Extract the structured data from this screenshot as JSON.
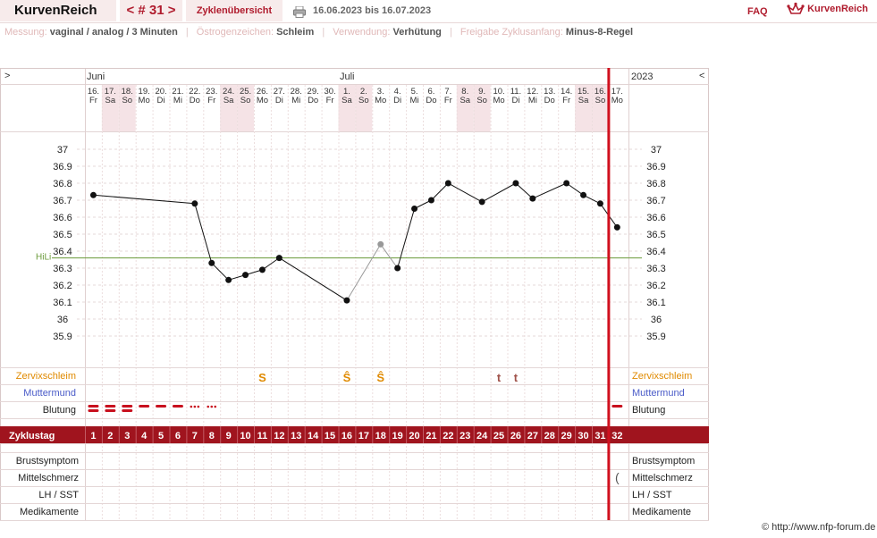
{
  "header": {
    "logo": "KurvenReich",
    "nav": "< # 31 >",
    "cycle_overview": "Zyklenübersicht",
    "date_range": "16.06.2023 bis 16.07.2023",
    "faq": "FAQ",
    "brand": "KurvenReich",
    "print_icon": "printer-icon",
    "brand_icon": "crown-icon"
  },
  "info": {
    "measure_label": "Messung:",
    "measure_value": "vaginal / analog / 3 Minuten",
    "estrogen_label": "Östrogenzeichen:",
    "estrogen_value": "Schleim",
    "usage_label": "Verwendung:",
    "usage_value": "Verhütung",
    "release_label": "Freigabe Zyklusanfang:",
    "release_value": "Minus-8-Regel"
  },
  "calendar": {
    "left_arrow": ">",
    "right_arrow": "<",
    "year": "2023",
    "month_juni": "Juni",
    "month_juli": "Juli",
    "dates": [
      "16.",
      "17.",
      "18.",
      "19.",
      "20.",
      "21.",
      "22.",
      "23.",
      "24.",
      "25.",
      "26.",
      "27.",
      "28.",
      "29.",
      "30.",
      "1.",
      "2.",
      "3.",
      "4.",
      "5.",
      "6.",
      "7.",
      "8.",
      "9.",
      "10.",
      "11.",
      "12.",
      "13.",
      "14.",
      "15.",
      "16.",
      "17."
    ],
    "weekdays": [
      "Fr",
      "Sa",
      "So",
      "Mo",
      "Di",
      "Mi",
      "Do",
      "Fr",
      "Sa",
      "So",
      "Mo",
      "Di",
      "Mi",
      "Do",
      "Fr",
      "Sa",
      "So",
      "Mo",
      "Di",
      "Mi",
      "Do",
      "Fr",
      "Sa",
      "So",
      "Mo",
      "Di",
      "Mi",
      "Do",
      "Fr",
      "Sa",
      "So",
      "Mo"
    ],
    "weekend_days": [
      2,
      3,
      9,
      10,
      16,
      17,
      23,
      24,
      30,
      31
    ]
  },
  "chart_data": {
    "type": "line",
    "y_ticks": [
      "37",
      "36.9",
      "36.8",
      "36.7",
      "36.6",
      "36.5",
      "36.4",
      "36.3",
      "36.2",
      "36.1",
      "36",
      "35.9"
    ],
    "ylim": [
      35.9,
      37.0
    ],
    "cover_line_label": "HiLi",
    "cover_line_value": 36.36,
    "series": [
      {
        "x": [
          1,
          7,
          8,
          9,
          10,
          11,
          12,
          16,
          18,
          19,
          20,
          21,
          22,
          24,
          26,
          27,
          29,
          30,
          31,
          32
        ],
        "values": [
          36.73,
          36.68,
          36.33,
          36.23,
          36.26,
          36.29,
          36.36,
          36.11,
          36.44,
          36.3,
          36.65,
          36.7,
          36.8,
          36.69,
          36.8,
          36.71,
          36.8,
          36.73,
          36.68,
          36.54
        ],
        "disturbed": [
          18
        ]
      }
    ],
    "current_day": 32
  },
  "rows": {
    "cervical_label": "Zervixschleim",
    "cervix_label": "Muttermund",
    "bleeding_label": "Blutung",
    "cycle_day_label": "Zyklustag",
    "breast_label": "Brustsymptom",
    "midpain_label": "Mittelschmerz",
    "lh_label": "LH / SST",
    "meds_label": "Medikamente",
    "cervical_marks": [
      {
        "day": 11,
        "mark": "S"
      },
      {
        "day": 16,
        "mark": "Ŝ"
      },
      {
        "day": 18,
        "mark": "Ŝ"
      },
      {
        "day": 25,
        "mark": "t"
      },
      {
        "day": 26,
        "mark": "t"
      }
    ],
    "bleeding": [
      {
        "day": 1,
        "kind": "heavy"
      },
      {
        "day": 2,
        "kind": "heavy"
      },
      {
        "day": 3,
        "kind": "heavy"
      },
      {
        "day": 4,
        "kind": "medium"
      },
      {
        "day": 5,
        "kind": "medium"
      },
      {
        "day": 6,
        "kind": "medium"
      },
      {
        "day": 7,
        "kind": "spotting"
      },
      {
        "day": 8,
        "kind": "spotting"
      },
      {
        "day": 32,
        "kind": "medium"
      }
    ],
    "midpain_marks": [
      {
        "day": 32,
        "mark": "("
      }
    ]
  },
  "colors": {
    "accent": "#a0141e",
    "weekend_bg": "#f5e3e6",
    "grid_bg": "#fbf5f5",
    "cervical": "#e08a00",
    "cervix": "#4a5bc8",
    "coverline": "#6a9a3a"
  },
  "credit": "© http://www.nfp-forum.de"
}
